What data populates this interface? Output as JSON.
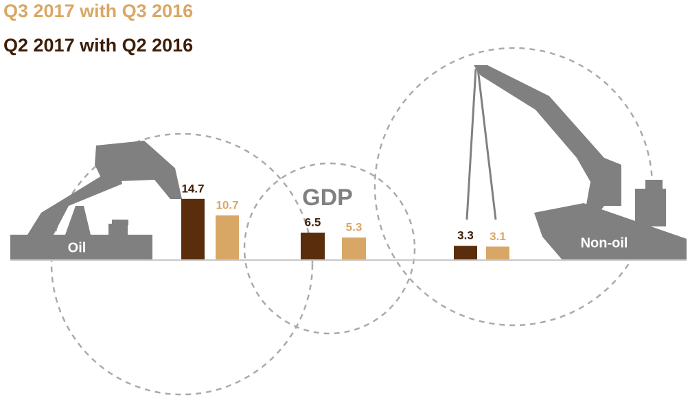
{
  "chart_data": {
    "type": "bar",
    "categories": [
      "Oil",
      "GDP",
      "Non-oil"
    ],
    "series": [
      {
        "name": "Q2 2017 with Q2 2016",
        "color": "#5a2d0c",
        "values": [
          14.7,
          6.5,
          3.3
        ]
      },
      {
        "name": "Q3 2017 with Q3 2016",
        "color": "#d9a765",
        "values": [
          10.7,
          5.3,
          3.1
        ]
      }
    ]
  }
}
